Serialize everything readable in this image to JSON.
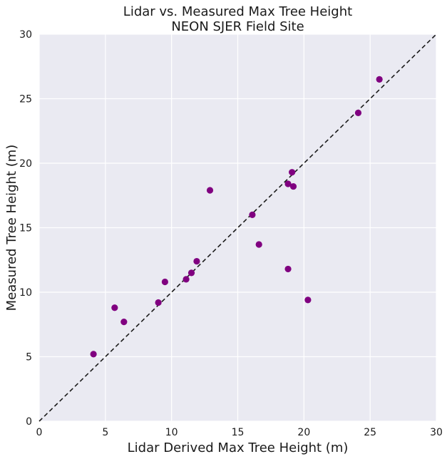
{
  "chart_data": {
    "type": "scatter",
    "title": "Lidar vs. Measured Max Tree Height",
    "subtitle": "NEON SJER Field Site",
    "xlabel": "Lidar Derived Max Tree Height (m)",
    "ylabel": "Measured Tree Height (m)",
    "xlim": [
      0,
      30
    ],
    "ylim": [
      0,
      30
    ],
    "xticks": [
      0,
      5,
      10,
      15,
      20,
      25,
      30
    ],
    "yticks": [
      0,
      5,
      10,
      15,
      20,
      25,
      30
    ],
    "grid": true,
    "reference_line": {
      "style": "dashed",
      "from": [
        0,
        0
      ],
      "to": [
        30,
        30
      ],
      "color": "#1a1a1a"
    },
    "series": [
      {
        "marker_color": "#800080",
        "points": [
          {
            "x": 4.1,
            "y": 5.2
          },
          {
            "x": 5.7,
            "y": 8.8
          },
          {
            "x": 6.4,
            "y": 7.7
          },
          {
            "x": 9.0,
            "y": 9.2
          },
          {
            "x": 9.5,
            "y": 10.8
          },
          {
            "x": 11.1,
            "y": 11.0
          },
          {
            "x": 11.5,
            "y": 11.5
          },
          {
            "x": 11.9,
            "y": 12.4
          },
          {
            "x": 12.9,
            "y": 17.9
          },
          {
            "x": 16.1,
            "y": 16.0
          },
          {
            "x": 16.6,
            "y": 13.7
          },
          {
            "x": 18.8,
            "y": 11.8
          },
          {
            "x": 18.8,
            "y": 18.4
          },
          {
            "x": 19.1,
            "y": 19.3
          },
          {
            "x": 19.2,
            "y": 18.2
          },
          {
            "x": 20.3,
            "y": 9.4
          },
          {
            "x": 24.1,
            "y": 23.9
          },
          {
            "x": 25.7,
            "y": 26.5
          }
        ]
      }
    ]
  },
  "style": {
    "plot_background": "#eaeaf2",
    "grid_color": "#ffffff",
    "text_color": "#1a1a1a"
  }
}
